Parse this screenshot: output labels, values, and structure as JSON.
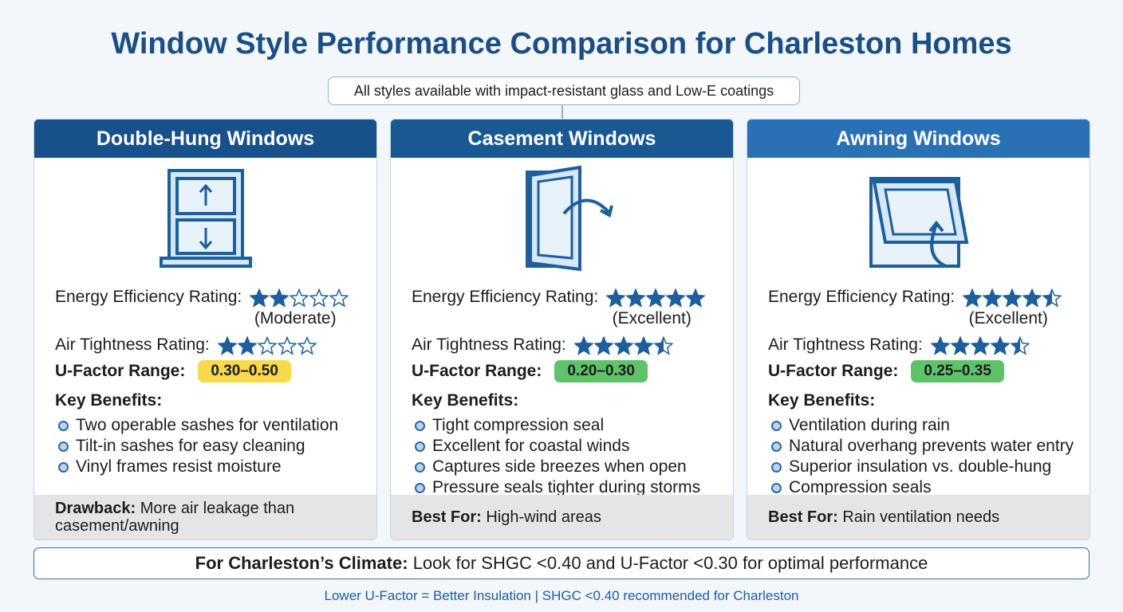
{
  "title": "Window Style Performance Comparison for Charleston Homes",
  "subtitle": "All styles available with impact-resistant glass and Low-E coatings",
  "cards": [
    {
      "header": "Double-Hung Windows",
      "header_color": "#17508a",
      "energy_label": "Energy Efficiency Rating:",
      "energy_rating": 2,
      "energy_text": "(Moderate)",
      "air_label": "Air Tightness Rating:",
      "air_rating": 2,
      "ufactor_label": "U-Factor Range:",
      "ufactor": "0.30–0.50",
      "ufactor_color": "#f7d94c",
      "benefits_label": "Key Benefits:",
      "benefits": [
        "Two operable sashes for ventilation",
        "Tilt-in sashes for easy cleaning",
        "Vinyl frames resist moisture"
      ],
      "footer_label": "Drawback:",
      "footer_text": "More air leakage than casement/awning"
    },
    {
      "header": "Casement Windows",
      "header_color": "#1a5894",
      "energy_label": "Energy Efficiency Rating:",
      "energy_rating": 5,
      "energy_text": "(Excellent)",
      "air_label": "Air Tightness Rating:",
      "air_rating": 4.5,
      "ufactor_label": "U-Factor Range:",
      "ufactor": "0.20–0.30",
      "ufactor_color": "#5fc26a",
      "benefits_label": "Key Benefits:",
      "benefits": [
        "Tight compression seal",
        "Excellent for coastal winds",
        "Captures side breezes when open",
        "Pressure seals tighter during storms"
      ],
      "footer_label": "Best For:",
      "footer_text": "High-wind areas"
    },
    {
      "header": "Awning Windows",
      "header_color": "#2a70b5",
      "energy_label": "Energy Efficiency Rating:",
      "energy_rating": 4.5,
      "energy_text": "(Excellent)",
      "air_label": "Air Tightness Rating:",
      "air_rating": 4.5,
      "ufactor_label": "U-Factor Range:",
      "ufactor": "0.25–0.35",
      "ufactor_color": "#5fc26a",
      "benefits_label": "Key Benefits:",
      "benefits": [
        "Ventilation during rain",
        "Natural overhang prevents water entry",
        "Superior insulation vs. double-hung",
        "Compression seals"
      ],
      "footer_label": "Best For:",
      "footer_text": "Rain ventilation needs"
    }
  ],
  "climate": {
    "label": "For Charleston’s Climate:",
    "text": "Look for SHGC <0.40 and U-Factor <0.30 for optimal performance"
  },
  "footnote": "Lower U-Factor = Better Insulation | SHGC <0.40 recommended for Charleston"
}
